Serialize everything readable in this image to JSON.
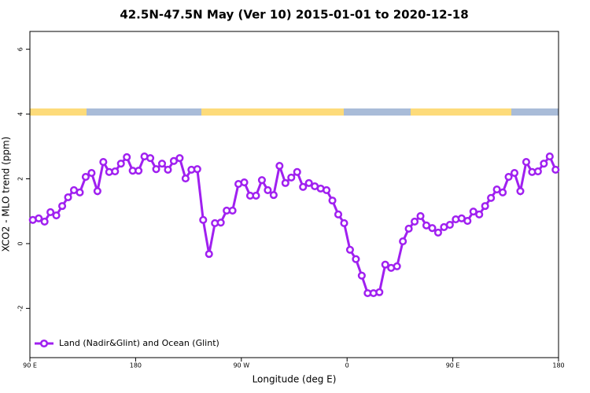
{
  "chart_data": {
    "type": "line",
    "title": "42.5N-47.5N May (Ver 10)   2015-01-01 to 2020-12-18",
    "x_label": "Longitude (deg E)",
    "y_label": "XCO2 - MLO trend (ppm)",
    "legend": "bottom-left",
    "xlim": [
      90,
      540
    ],
    "xticks": [
      {
        "value": 90,
        "label": "90 E"
      },
      {
        "value": 180,
        "label": "180"
      },
      {
        "value": 270,
        "label": "90 W"
      },
      {
        "value": 360,
        "label": "0"
      },
      {
        "value": 450,
        "label": "90 E"
      },
      {
        "value": 540,
        "label": "180"
      }
    ],
    "ylim": [
      -3.52,
      6.55
    ],
    "yticks": [
      -2,
      0,
      2,
      4,
      6
    ],
    "x": [
      92.5,
      97.5,
      102.5,
      107.5,
      112.5,
      117.5,
      122.5,
      127.5,
      132.5,
      137.5,
      142.5,
      147.5,
      152.5,
      157.5,
      162.5,
      167.5,
      172.5,
      177.5,
      182.5,
      187.5,
      192.5,
      197.5,
      202.5,
      207.5,
      212.5,
      217.5,
      222.5,
      227.5,
      232.5,
      237.5,
      242.5,
      247.5,
      252.5,
      257.5,
      262.5,
      267.5,
      272.5,
      277.5,
      282.5,
      287.5,
      292.5,
      297.5,
      302.5,
      307.5,
      312.5,
      317.5,
      322.5,
      327.5,
      332.5,
      337.5,
      342.5,
      347.5,
      352.5,
      357.5,
      362.5,
      367.5,
      372.5,
      377.5,
      382.5,
      387.5,
      392.5,
      397.5,
      402.5,
      407.5,
      412.5,
      417.5,
      422.5,
      427.5,
      432.5,
      437.5,
      442.5,
      447.5,
      452.5,
      457.5,
      462.5,
      467.5,
      472.5,
      477.5,
      482.5,
      487.5,
      492.5,
      497.5,
      502.5,
      507.5,
      512.5,
      517.5,
      522.5,
      527.5,
      532.5,
      537.5
    ],
    "series": [
      {
        "name": "Land (Nadir&Glint) and Ocean (Glint)",
        "color": "#a020f0",
        "values": [
          0.73,
          0.78,
          0.68,
          0.97,
          0.87,
          1.16,
          1.43,
          1.65,
          1.58,
          2.06,
          2.18,
          1.62,
          2.52,
          2.21,
          2.23,
          2.47,
          2.67,
          2.25,
          2.25,
          2.69,
          2.64,
          2.3,
          2.47,
          2.28,
          2.55,
          2.64,
          2.01,
          2.28,
          2.3,
          0.73,
          -0.32,
          0.63,
          0.65,
          1.02,
          1.02,
          1.84,
          1.89,
          1.48,
          1.48,
          1.96,
          1.65,
          1.5,
          2.4,
          1.87,
          2.04,
          2.21,
          1.75,
          1.87,
          1.77,
          1.7,
          1.65,
          1.33,
          0.9,
          0.63,
          -0.19,
          -0.48,
          -0.99,
          -1.53,
          -1.53,
          -1.5,
          -0.65,
          -0.75,
          -0.7,
          0.07,
          0.46,
          0.68,
          0.85,
          0.56,
          0.48,
          0.34,
          0.51,
          0.58,
          0.75,
          0.78,
          0.7,
          0.99,
          0.9,
          1.16,
          1.41,
          1.67,
          1.58,
          2.06,
          2.18,
          1.62,
          2.52,
          2.21,
          2.23,
          2.47,
          2.69,
          2.28
        ]
      }
    ]
  }
}
